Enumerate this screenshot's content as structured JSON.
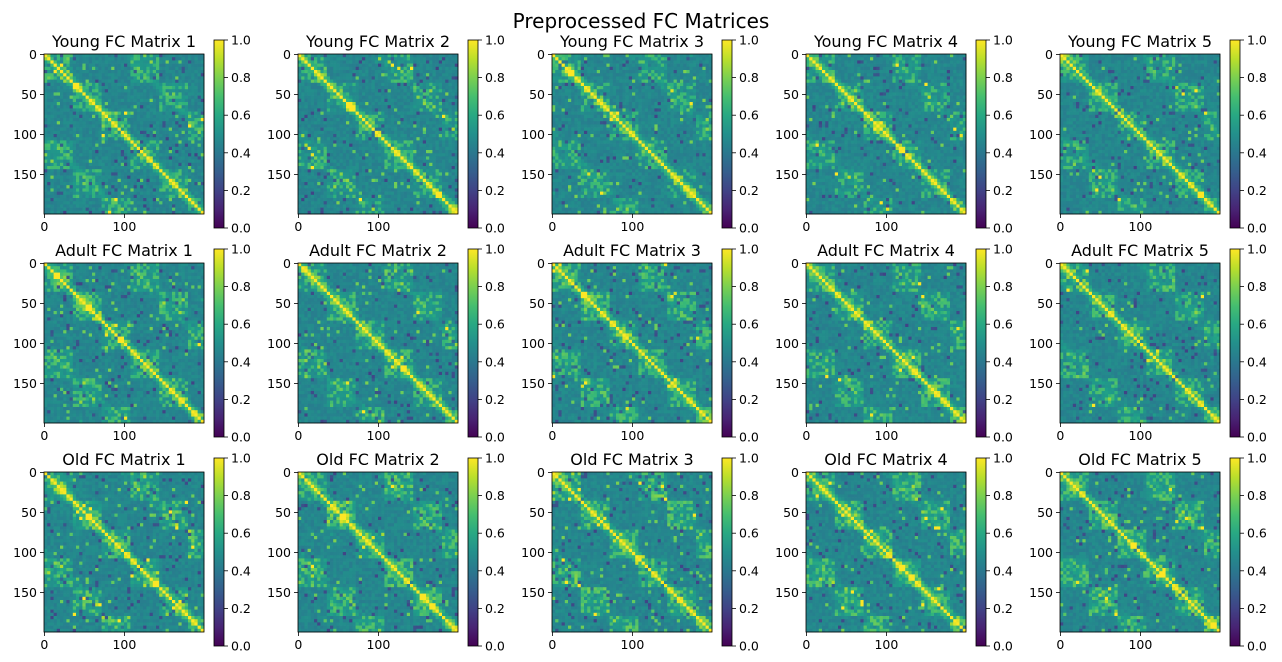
{
  "figure": {
    "title": "Preprocessed FC Matrices",
    "colormap": "viridis"
  },
  "chart_data": [
    {
      "type": "heatmap",
      "title": "Young FC Matrix 1",
      "group": "Young",
      "subject": 1,
      "size": 200,
      "ylim": [
        0,
        200
      ],
      "xlim": [
        0,
        200
      ],
      "xticks": [
        "0",
        "100"
      ],
      "yticks": [
        "0",
        "50",
        "100",
        "150"
      ],
      "colorbar": {
        "vmin": 0.0,
        "vmax": 1.0,
        "ticks": [
          "0.0",
          "0.2",
          "0.4",
          "0.6",
          "0.8",
          "1.0"
        ]
      }
    },
    {
      "type": "heatmap",
      "title": "Young FC Matrix 2",
      "group": "Young",
      "subject": 2,
      "size": 200,
      "ylim": [
        0,
        200
      ],
      "xlim": [
        0,
        200
      ],
      "xticks": [
        "0",
        "100"
      ],
      "yticks": [
        "0",
        "50",
        "100",
        "150"
      ],
      "colorbar": {
        "vmin": 0.0,
        "vmax": 1.0,
        "ticks": [
          "0.0",
          "0.2",
          "0.4",
          "0.6",
          "0.8",
          "1.0"
        ]
      }
    },
    {
      "type": "heatmap",
      "title": "Young FC Matrix 3",
      "group": "Young",
      "subject": 3,
      "size": 200,
      "ylim": [
        0,
        200
      ],
      "xlim": [
        0,
        200
      ],
      "xticks": [
        "0",
        "100"
      ],
      "yticks": [
        "0",
        "50",
        "100",
        "150"
      ],
      "colorbar": {
        "vmin": 0.0,
        "vmax": 1.0,
        "ticks": [
          "0.0",
          "0.2",
          "0.4",
          "0.6",
          "0.8",
          "1.0"
        ]
      }
    },
    {
      "type": "heatmap",
      "title": "Young FC Matrix 4",
      "group": "Young",
      "subject": 4,
      "size": 200,
      "ylim": [
        0,
        200
      ],
      "xlim": [
        0,
        200
      ],
      "xticks": [
        "0",
        "100"
      ],
      "yticks": [
        "0",
        "50",
        "100",
        "150"
      ],
      "colorbar": {
        "vmin": 0.0,
        "vmax": 1.0,
        "ticks": [
          "0.0",
          "0.2",
          "0.4",
          "0.6",
          "0.8",
          "1.0"
        ]
      }
    },
    {
      "type": "heatmap",
      "title": "Young FC Matrix 5",
      "group": "Young",
      "subject": 5,
      "size": 200,
      "ylim": [
        0,
        200
      ],
      "xlim": [
        0,
        200
      ],
      "xticks": [
        "0",
        "100"
      ],
      "yticks": [
        "0",
        "50",
        "100",
        "150"
      ],
      "colorbar": {
        "vmin": 0.0,
        "vmax": 1.0,
        "ticks": [
          "0.0",
          "0.2",
          "0.4",
          "0.6",
          "0.8",
          "1.0"
        ]
      }
    },
    {
      "type": "heatmap",
      "title": "Adult FC Matrix 1",
      "group": "Adult",
      "subject": 1,
      "size": 200,
      "ylim": [
        0,
        200
      ],
      "xlim": [
        0,
        200
      ],
      "xticks": [
        "0",
        "100"
      ],
      "yticks": [
        "0",
        "50",
        "100",
        "150"
      ],
      "colorbar": {
        "vmin": 0.0,
        "vmax": 1.0,
        "ticks": [
          "0.0",
          "0.2",
          "0.4",
          "0.6",
          "0.8",
          "1.0"
        ]
      }
    },
    {
      "type": "heatmap",
      "title": "Adult FC Matrix 2",
      "group": "Adult",
      "subject": 2,
      "size": 200,
      "ylim": [
        0,
        200
      ],
      "xlim": [
        0,
        200
      ],
      "xticks": [
        "0",
        "100"
      ],
      "yticks": [
        "0",
        "50",
        "100",
        "150"
      ],
      "colorbar": {
        "vmin": 0.0,
        "vmax": 1.0,
        "ticks": [
          "0.0",
          "0.2",
          "0.4",
          "0.6",
          "0.8",
          "1.0"
        ]
      }
    },
    {
      "type": "heatmap",
      "title": "Adult FC Matrix 3",
      "group": "Adult",
      "subject": 3,
      "size": 200,
      "ylim": [
        0,
        200
      ],
      "xlim": [
        0,
        200
      ],
      "xticks": [
        "0",
        "100"
      ],
      "yticks": [
        "0",
        "50",
        "100",
        "150"
      ],
      "colorbar": {
        "vmin": 0.0,
        "vmax": 1.0,
        "ticks": [
          "0.0",
          "0.2",
          "0.4",
          "0.6",
          "0.8",
          "1.0"
        ]
      }
    },
    {
      "type": "heatmap",
      "title": "Adult FC Matrix 4",
      "group": "Adult",
      "subject": 4,
      "size": 200,
      "ylim": [
        0,
        200
      ],
      "xlim": [
        0,
        200
      ],
      "xticks": [
        "0",
        "100"
      ],
      "yticks": [
        "0",
        "50",
        "100",
        "150"
      ],
      "colorbar": {
        "vmin": 0.0,
        "vmax": 1.0,
        "ticks": [
          "0.0",
          "0.2",
          "0.4",
          "0.6",
          "0.8",
          "1.0"
        ]
      }
    },
    {
      "type": "heatmap",
      "title": "Adult FC Matrix 5",
      "group": "Adult",
      "subject": 5,
      "size": 200,
      "ylim": [
        0,
        200
      ],
      "xlim": [
        0,
        200
      ],
      "xticks": [
        "0",
        "100"
      ],
      "yticks": [
        "0",
        "50",
        "100",
        "150"
      ],
      "colorbar": {
        "vmin": 0.0,
        "vmax": 1.0,
        "ticks": [
          "0.0",
          "0.2",
          "0.4",
          "0.6",
          "0.8",
          "1.0"
        ]
      }
    },
    {
      "type": "heatmap",
      "title": "Old FC Matrix 1",
      "group": "Old",
      "subject": 1,
      "size": 200,
      "ylim": [
        0,
        200
      ],
      "xlim": [
        0,
        200
      ],
      "xticks": [
        "0",
        "100"
      ],
      "yticks": [
        "0",
        "50",
        "100",
        "150"
      ],
      "colorbar": {
        "vmin": 0.0,
        "vmax": 1.0,
        "ticks": [
          "0.0",
          "0.2",
          "0.4",
          "0.6",
          "0.8",
          "1.0"
        ]
      }
    },
    {
      "type": "heatmap",
      "title": "Old FC Matrix 2",
      "group": "Old",
      "subject": 2,
      "size": 200,
      "ylim": [
        0,
        200
      ],
      "xlim": [
        0,
        200
      ],
      "xticks": [
        "0",
        "100"
      ],
      "yticks": [
        "0",
        "50",
        "100",
        "150"
      ],
      "colorbar": {
        "vmin": 0.0,
        "vmax": 1.0,
        "ticks": [
          "0.0",
          "0.2",
          "0.4",
          "0.6",
          "0.8",
          "1.0"
        ]
      }
    },
    {
      "type": "heatmap",
      "title": "Old FC Matrix 3",
      "group": "Old",
      "subject": 3,
      "size": 200,
      "ylim": [
        0,
        200
      ],
      "xlim": [
        0,
        200
      ],
      "xticks": [
        "0",
        "100"
      ],
      "yticks": [
        "0",
        "50",
        "100",
        "150"
      ],
      "colorbar": {
        "vmin": 0.0,
        "vmax": 1.0,
        "ticks": [
          "0.0",
          "0.2",
          "0.4",
          "0.6",
          "0.8",
          "1.0"
        ]
      }
    },
    {
      "type": "heatmap",
      "title": "Old FC Matrix 4",
      "group": "Old",
      "subject": 4,
      "size": 200,
      "ylim": [
        0,
        200
      ],
      "xlim": [
        0,
        200
      ],
      "xticks": [
        "0",
        "100"
      ],
      "yticks": [
        "0",
        "50",
        "100",
        "150"
      ],
      "colorbar": {
        "vmin": 0.0,
        "vmax": 1.0,
        "ticks": [
          "0.0",
          "0.2",
          "0.4",
          "0.6",
          "0.8",
          "1.0"
        ]
      }
    },
    {
      "type": "heatmap",
      "title": "Old FC Matrix 5",
      "group": "Old",
      "subject": 5,
      "size": 200,
      "ylim": [
        0,
        200
      ],
      "xlim": [
        0,
        200
      ],
      "xticks": [
        "0",
        "100"
      ],
      "yticks": [
        "0",
        "50",
        "100",
        "150"
      ],
      "colorbar": {
        "vmin": 0.0,
        "vmax": 1.0,
        "ticks": [
          "0.0",
          "0.2",
          "0.4",
          "0.6",
          "0.8",
          "1.0"
        ]
      }
    }
  ]
}
